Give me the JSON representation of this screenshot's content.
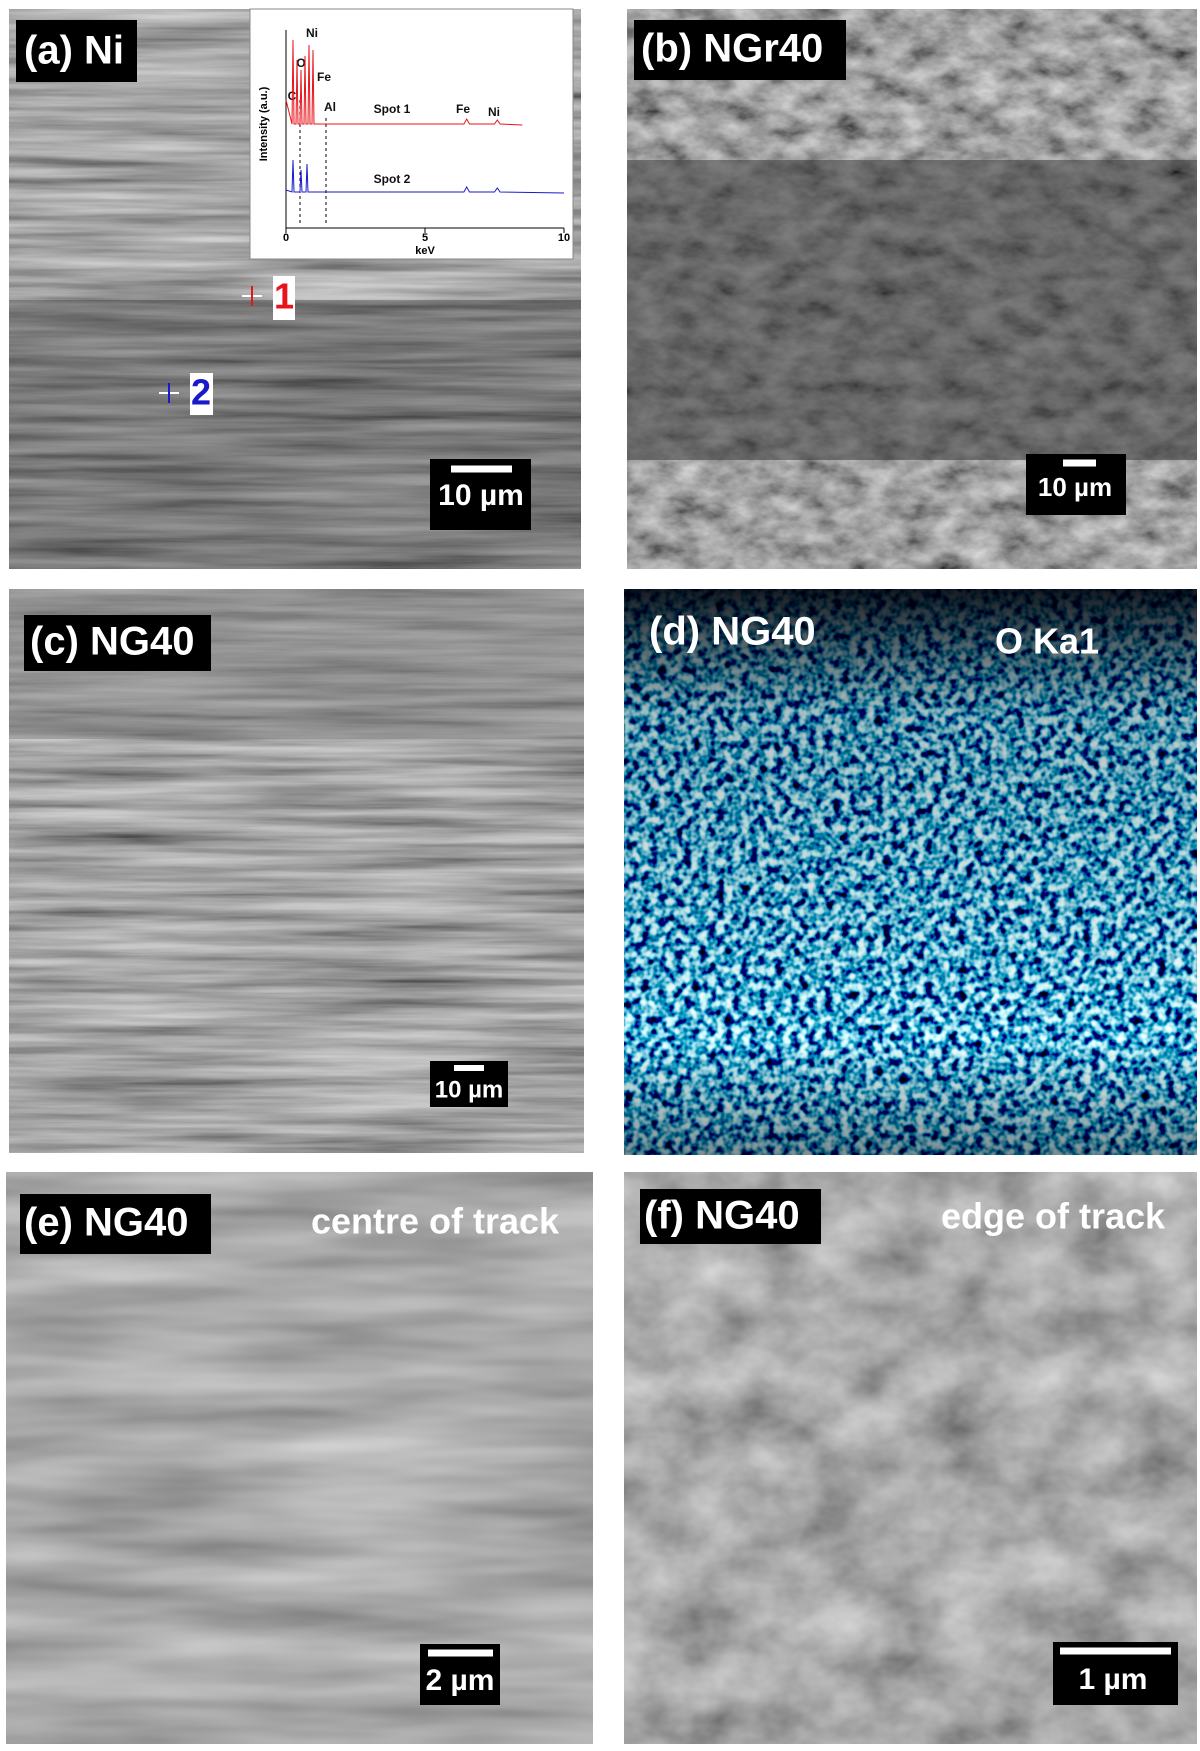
{
  "panels": [
    {
      "label": "(a) Ni",
      "scale_bar": "10 µm"
    },
    {
      "label": "(b) NGr40",
      "scale_bar": "10 µm"
    },
    {
      "label": "(c) NG40",
      "scale_bar": "10 µm"
    },
    {
      "label": "(d) NG40",
      "annotation": "O Ka1"
    },
    {
      "label": "(e) NG40",
      "annotation": "centre of track",
      "scale_bar": "2 µm"
    },
    {
      "label": "(f) NG40",
      "annotation": "edge of track",
      "scale_bar": "1 µm"
    }
  ],
  "spot_markers": [
    "1",
    "2"
  ],
  "inset": {
    "x_label": "keV",
    "y_label": "Intensity (a.u.)",
    "xlim": [
      0,
      10
    ],
    "xticks": [
      0,
      5,
      10
    ],
    "peak_labels": [
      "Ni",
      "O",
      "Fe",
      "C",
      "Al",
      "Fe",
      "Ni"
    ],
    "series": [
      {
        "name": "Spot 1",
        "color": "#e8141c"
      },
      {
        "name": "Spot 2",
        "color": "#1a1acc"
      }
    ]
  }
}
